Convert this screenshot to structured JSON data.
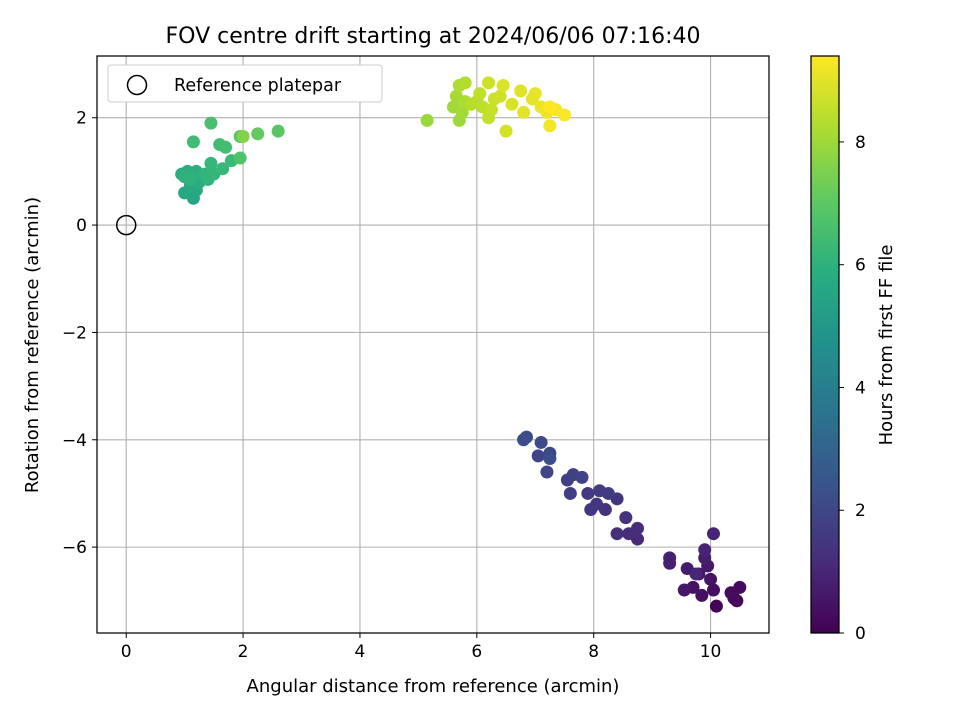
{
  "chart_data": {
    "type": "scatter",
    "title": "FOV centre drift starting at 2024/06/06 07:16:40",
    "xlabel": "Angular distance from reference (arcmin)",
    "ylabel": "Rotation from reference (arcmin)",
    "xlim": [
      -0.5,
      11.0
    ],
    "ylim": [
      -7.6,
      3.15
    ],
    "xticks": [
      0,
      2,
      4,
      6,
      8,
      10
    ],
    "yticks": [
      -6,
      -4,
      -2,
      0,
      2
    ],
    "grid": true,
    "legend": {
      "position": "top-left",
      "entries": [
        "Reference platepar"
      ]
    },
    "reference_point": {
      "x": 0.0,
      "y": 0.0
    },
    "colorbar": {
      "label": "Hours from first FF file",
      "colormap": "viridis",
      "range": [
        0,
        9.4
      ],
      "ticks": [
        0,
        2,
        4,
        6,
        8
      ]
    },
    "series": [
      {
        "points": [
          {
            "x": 10.1,
            "y": -7.1,
            "h": 0.05
          },
          {
            "x": 10.45,
            "y": -7.0,
            "h": 0.15
          },
          {
            "x": 10.4,
            "y": -6.95,
            "h": 0.2
          },
          {
            "x": 10.5,
            "y": -6.75,
            "h": 0.25
          },
          {
            "x": 10.35,
            "y": -6.85,
            "h": 0.3
          },
          {
            "x": 10.05,
            "y": -6.8,
            "h": 0.35
          },
          {
            "x": 9.85,
            "y": -6.9,
            "h": 0.4
          },
          {
            "x": 9.7,
            "y": -6.75,
            "h": 0.45
          },
          {
            "x": 10.0,
            "y": -6.6,
            "h": 0.5
          },
          {
            "x": 9.55,
            "y": -6.8,
            "h": 0.55
          },
          {
            "x": 9.8,
            "y": -6.5,
            "h": 0.6
          },
          {
            "x": 9.95,
            "y": -6.35,
            "h": 0.65
          },
          {
            "x": 9.6,
            "y": -6.4,
            "h": 0.7
          },
          {
            "x": 9.9,
            "y": -6.2,
            "h": 0.75
          },
          {
            "x": 9.3,
            "y": -6.3,
            "h": 0.8
          },
          {
            "x": 9.3,
            "y": -6.2,
            "h": 0.85
          },
          {
            "x": 9.9,
            "y": -6.05,
            "h": 0.9
          },
          {
            "x": 10.05,
            "y": -5.75,
            "h": 0.95
          },
          {
            "x": 9.75,
            "y": -6.5,
            "h": 1.0
          },
          {
            "x": 8.75,
            "y": -5.85,
            "h": 1.15
          },
          {
            "x": 8.75,
            "y": -5.65,
            "h": 1.2
          },
          {
            "x": 8.6,
            "y": -5.75,
            "h": 1.25
          },
          {
            "x": 8.4,
            "y": -5.75,
            "h": 1.3
          },
          {
            "x": 8.55,
            "y": -5.45,
            "h": 1.35
          },
          {
            "x": 8.2,
            "y": -5.3,
            "h": 1.4
          },
          {
            "x": 8.4,
            "y": -5.1,
            "h": 1.45
          },
          {
            "x": 7.95,
            "y": -5.3,
            "h": 1.5
          },
          {
            "x": 8.05,
            "y": -5.2,
            "h": 1.55
          },
          {
            "x": 7.9,
            "y": -5.0,
            "h": 1.6
          },
          {
            "x": 8.1,
            "y": -4.95,
            "h": 1.65
          },
          {
            "x": 8.25,
            "y": -5.0,
            "h": 1.7
          },
          {
            "x": 7.6,
            "y": -5.0,
            "h": 1.75
          },
          {
            "x": 7.55,
            "y": -4.75,
            "h": 1.8
          },
          {
            "x": 7.65,
            "y": -4.65,
            "h": 1.85
          },
          {
            "x": 7.8,
            "y": -4.7,
            "h": 1.9
          },
          {
            "x": 7.2,
            "y": -4.6,
            "h": 1.95
          },
          {
            "x": 7.05,
            "y": -4.3,
            "h": 2.0
          },
          {
            "x": 7.25,
            "y": -4.25,
            "h": 2.05
          },
          {
            "x": 7.1,
            "y": -4.05,
            "h": 2.1
          },
          {
            "x": 6.85,
            "y": -3.95,
            "h": 2.15
          },
          {
            "x": 6.8,
            "y": -4.0,
            "h": 2.2
          },
          {
            "x": 7.25,
            "y": -4.35,
            "h": 2.25
          },
          {
            "x": 1.15,
            "y": 0.5,
            "h": 5.55
          },
          {
            "x": 1.0,
            "y": 0.6,
            "h": 5.6
          },
          {
            "x": 1.2,
            "y": 0.65,
            "h": 5.65
          },
          {
            "x": 1.1,
            "y": 0.75,
            "h": 5.7
          },
          {
            "x": 1.25,
            "y": 0.8,
            "h": 5.75
          },
          {
            "x": 0.95,
            "y": 0.95,
            "h": 5.8
          },
          {
            "x": 1.05,
            "y": 1.0,
            "h": 5.85
          },
          {
            "x": 1.15,
            "y": 0.95,
            "h": 5.9
          },
          {
            "x": 1.2,
            "y": 1.0,
            "h": 5.95
          },
          {
            "x": 1.0,
            "y": 0.9,
            "h": 6.0
          },
          {
            "x": 1.1,
            "y": 0.85,
            "h": 6.05
          },
          {
            "x": 1.4,
            "y": 0.85,
            "h": 6.1
          },
          {
            "x": 1.35,
            "y": 0.95,
            "h": 6.15
          },
          {
            "x": 1.5,
            "y": 0.95,
            "h": 6.2
          },
          {
            "x": 1.45,
            "y": 1.15,
            "h": 6.25
          },
          {
            "x": 1.65,
            "y": 1.05,
            "h": 6.3
          },
          {
            "x": 1.8,
            "y": 1.2,
            "h": 6.35
          },
          {
            "x": 1.15,
            "y": 1.55,
            "h": 6.45
          },
          {
            "x": 1.6,
            "y": 1.5,
            "h": 6.5
          },
          {
            "x": 1.7,
            "y": 1.45,
            "h": 6.55
          },
          {
            "x": 1.45,
            "y": 1.9,
            "h": 6.65
          },
          {
            "x": 1.95,
            "y": 1.25,
            "h": 6.75
          },
          {
            "x": 1.95,
            "y": 1.65,
            "h": 6.85
          },
          {
            "x": 2.6,
            "y": 1.75,
            "h": 6.95
          },
          {
            "x": 2.25,
            "y": 1.7,
            "h": 7.1
          },
          {
            "x": 2.0,
            "y": 1.65,
            "h": 7.6
          },
          {
            "x": 5.15,
            "y": 1.95,
            "h": 7.95
          },
          {
            "x": 5.7,
            "y": 1.95,
            "h": 8.0
          },
          {
            "x": 5.6,
            "y": 2.2,
            "h": 8.05
          },
          {
            "x": 5.75,
            "y": 2.1,
            "h": 8.1
          },
          {
            "x": 5.65,
            "y": 2.4,
            "h": 8.15
          },
          {
            "x": 5.8,
            "y": 2.3,
            "h": 8.2
          },
          {
            "x": 5.7,
            "y": 2.6,
            "h": 8.25
          },
          {
            "x": 5.8,
            "y": 2.65,
            "h": 8.3
          },
          {
            "x": 5.9,
            "y": 2.25,
            "h": 8.35
          },
          {
            "x": 6.0,
            "y": 2.3,
            "h": 8.4
          },
          {
            "x": 6.1,
            "y": 2.2,
            "h": 8.45
          },
          {
            "x": 6.05,
            "y": 2.45,
            "h": 8.5
          },
          {
            "x": 6.2,
            "y": 2.0,
            "h": 8.55
          },
          {
            "x": 6.25,
            "y": 2.15,
            "h": 8.6
          },
          {
            "x": 6.3,
            "y": 2.35,
            "h": 8.65
          },
          {
            "x": 6.2,
            "y": 2.65,
            "h": 8.7
          },
          {
            "x": 6.4,
            "y": 2.4,
            "h": 8.75
          },
          {
            "x": 6.5,
            "y": 1.75,
            "h": 8.8
          },
          {
            "x": 6.6,
            "y": 2.25,
            "h": 8.85
          },
          {
            "x": 6.45,
            "y": 2.6,
            "h": 8.9
          },
          {
            "x": 6.75,
            "y": 2.5,
            "h": 8.95
          },
          {
            "x": 6.8,
            "y": 2.1,
            "h": 9.0
          },
          {
            "x": 6.95,
            "y": 2.35,
            "h": 9.05
          },
          {
            "x": 7.0,
            "y": 2.45,
            "h": 9.1
          },
          {
            "x": 7.1,
            "y": 2.2,
            "h": 9.15
          },
          {
            "x": 7.2,
            "y": 2.1,
            "h": 9.2
          },
          {
            "x": 7.25,
            "y": 1.85,
            "h": 9.25
          },
          {
            "x": 7.35,
            "y": 2.15,
            "h": 9.3
          },
          {
            "x": 7.5,
            "y": 2.05,
            "h": 9.35
          },
          {
            "x": 7.25,
            "y": 2.2,
            "h": 9.4
          }
        ]
      }
    ]
  }
}
